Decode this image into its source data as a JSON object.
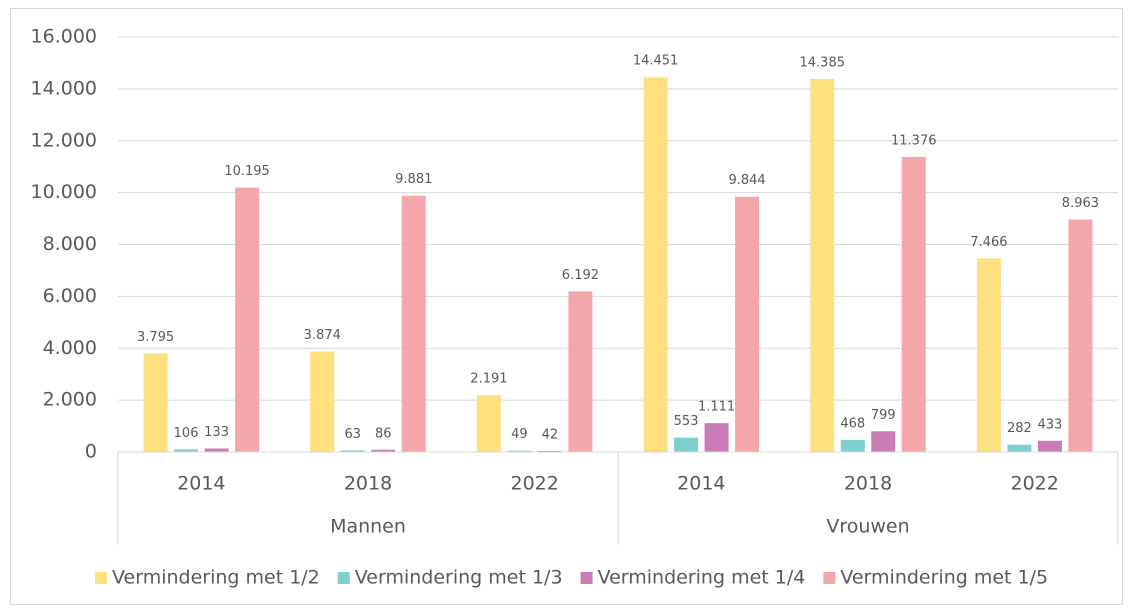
{
  "chart_data": {
    "type": "bar",
    "categories": [
      "2014",
      "2018",
      "2022",
      "2014",
      "2018",
      "2022"
    ],
    "groups": [
      "Mannen",
      "Vrouwen"
    ],
    "series": [
      {
        "name": "Vermindering met 1/2",
        "color": "#FFE07E",
        "values": [
          3795,
          3874,
          2191,
          14451,
          14385,
          7466
        ],
        "value_labels": [
          "3.795",
          "3.874",
          "2.191",
          "14.451",
          "14.385",
          "7.466"
        ]
      },
      {
        "name": "Vermindering met 1/3",
        "color": "#7FCFCF",
        "values": [
          106,
          63,
          49,
          553,
          468,
          282
        ]
      },
      {
        "name": "Vermindering met 1/4",
        "color": "#C97BB6",
        "values": [
          133,
          86,
          42,
          1111,
          799,
          433
        ],
        "value_labels": [
          "133",
          "86",
          "42",
          "1.111",
          "799",
          "433"
        ]
      },
      {
        "name": "Vermindering met 1/5",
        "color": "#F4A7AB",
        "values": [
          10195,
          9881,
          6192,
          9844,
          11376,
          8963
        ],
        "value_labels": [
          "10.195",
          "9.881",
          "6.192",
          "9.844",
          "11.376",
          "8.963"
        ]
      }
    ],
    "ylim": [
      0,
      16000
    ],
    "yticks": [
      0,
      {
        "value": 2000,
        "label": "2.000"
      },
      {
        "value": 4000,
        "label": "4.000"
      },
      {
        "value": 6000,
        "label": "6.000"
      },
      {
        "value": 8000,
        "label": "8.000"
      },
      {
        "value": 10000,
        "label": "10.000"
      },
      {
        "value": 12000,
        "label": "12.000"
      },
      {
        "value": 14000,
        "label": "14.000"
      },
      {
        "value": 16000,
        "label": "16.000"
      }
    ],
    "grid": true,
    "legend": "bottom"
  }
}
